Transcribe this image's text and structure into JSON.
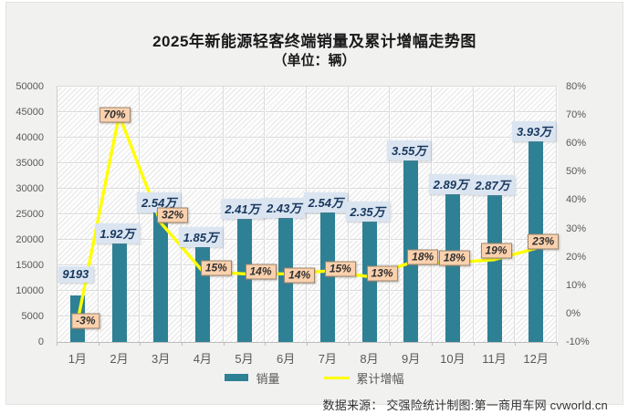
{
  "chart": {
    "title": "2025年新能源轻客终端销量及累计增幅走势图",
    "subtitle": "（单位：辆）",
    "legend": [
      "销量",
      "累计增幅"
    ],
    "source_note": "数据来源： 交强险统计制图:第一商用车网 cvworld.cn",
    "colors": {
      "bar": "#2e8095",
      "line": "#ffff00",
      "bar_label_bg": "#dbe5f1",
      "bar_label_text": "#17375e",
      "pct_label_bg": "#fbd1ad",
      "panel_bg": "#f1f1f0"
    }
  },
  "chart_data": {
    "type": "bar",
    "combo": "bar+line",
    "title": "2025年新能源轻客终端销量及累计增幅走势图",
    "subtitle": "（单位：辆）",
    "categories": [
      "1月",
      "2月",
      "3月",
      "4月",
      "5月",
      "6月",
      "7月",
      "8月",
      "9月",
      "10月",
      "11月",
      "12月"
    ],
    "series": [
      {
        "name": "销量",
        "type": "bar",
        "axis": "left",
        "unit": "辆",
        "values": [
          9193,
          19200,
          25400,
          18500,
          24100,
          24300,
          25400,
          23500,
          35500,
          28900,
          28700,
          39300
        ],
        "data_labels": [
          "9193",
          "1.92万",
          "2.54万",
          "1.85万",
          "2.41万",
          "2.43万",
          "2.54万",
          "2.35万",
          "3.55万",
          "2.89万",
          "2.87万",
          "3.93万"
        ],
        "color": "#2e8095"
      },
      {
        "name": "累计增幅",
        "type": "line",
        "axis": "right",
        "unit": "%",
        "values": [
          -3,
          70,
          32,
          15,
          14,
          14,
          15,
          13,
          18,
          18,
          19,
          23
        ],
        "data_labels": [
          "-3%",
          "70%",
          "32%",
          "15%",
          "14%",
          "14%",
          "15%",
          "13%",
          "18%",
          "18%",
          "19%",
          "23%"
        ],
        "color": "#ffff00"
      }
    ],
    "left_axis": {
      "min": 0,
      "max": 50000,
      "step": 5000,
      "ticks": [
        "50000",
        "45000",
        "40000",
        "35000",
        "30000",
        "25000",
        "20000",
        "15000",
        "10000",
        "5000",
        "0"
      ]
    },
    "right_axis": {
      "min": -10,
      "max": 80,
      "step": 10,
      "ticks": [
        "80%",
        "70%",
        "60%",
        "50%",
        "40%",
        "30%",
        "20%",
        "10%",
        "0%",
        "-10%"
      ]
    },
    "grid": true,
    "legend_position": "bottom",
    "plot_background": "diagonal-hatch"
  }
}
